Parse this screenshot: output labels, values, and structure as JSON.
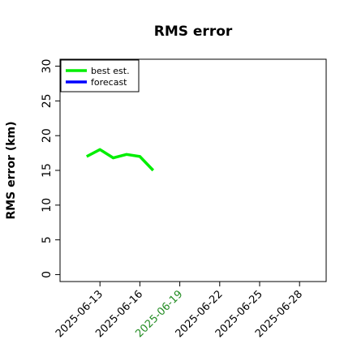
{
  "chart_data": {
    "type": "line",
    "title": "RMS error",
    "xlabel": "",
    "ylabel": "RMS error (km)",
    "xlim": [
      "2025-06-10",
      "2025-06-30"
    ],
    "ylim": [
      -1,
      31
    ],
    "yticks": [
      0,
      5,
      10,
      15,
      20,
      25,
      30
    ],
    "xticks": [
      "2025-06-13",
      "2025-06-16",
      "2025-06-19",
      "2025-06-22",
      "2025-06-25",
      "2025-06-28"
    ],
    "highlighted_xtick": "2025-06-19",
    "highlight_color": "#228B22",
    "legend_position": "top-left",
    "grid": false,
    "series": [
      {
        "name": "best est.",
        "color": "#00ee00",
        "points": [
          {
            "x": "2025-06-12",
            "y": 17.0
          },
          {
            "x": "2025-06-13",
            "y": 18.0
          },
          {
            "x": "2025-06-14",
            "y": 16.8
          },
          {
            "x": "2025-06-15",
            "y": 17.3
          },
          {
            "x": "2025-06-16",
            "y": 17.0
          },
          {
            "x": "2025-06-17",
            "y": 15.0
          }
        ]
      },
      {
        "name": "forecast",
        "color": "#0000ff",
        "points": []
      }
    ]
  }
}
